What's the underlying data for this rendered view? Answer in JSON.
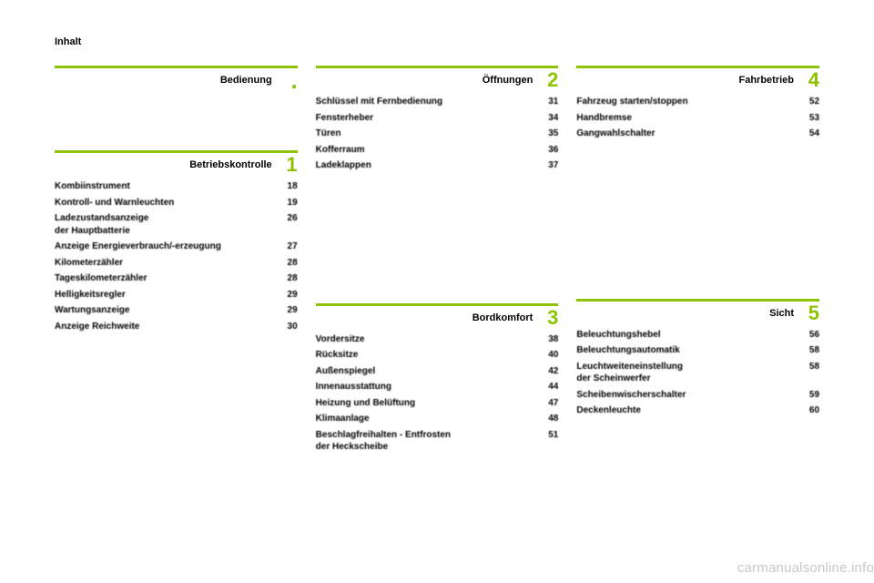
{
  "header": "Inhalt",
  "footer": "carmanualsonline.info",
  "col1": {
    "section_a": {
      "title": "Bedienung",
      "num": ".",
      "numColor": "#8ec301",
      "barColor": "#8ec301",
      "items": []
    },
    "section_b": {
      "title": "Betriebskontrolle",
      "num": "1",
      "numColor": "#8ec301",
      "barColor": "#8ec301",
      "items": [
        {
          "label": "Kombiinstrument",
          "page": "18"
        },
        {
          "label": "Kontroll- und Warnleuchten",
          "page": "19"
        },
        {
          "label": "Ladezustandsanzeige\nder Hauptbatterie",
          "page": "26"
        },
        {
          "label": "Anzeige Energieverbrauch/-erzeugung",
          "page": "27"
        },
        {
          "label": "Kilometerzähler",
          "page": "28"
        },
        {
          "label": "Tageskilometerzähler",
          "page": "28"
        },
        {
          "label": "Helligkeitsregler",
          "page": "29"
        },
        {
          "label": "Wartungsanzeige",
          "page": "29"
        },
        {
          "label": "Anzeige Reichweite",
          "page": "30"
        }
      ]
    }
  },
  "col2": {
    "section_a": {
      "title": "Öffnungen",
      "num": "2",
      "numColor": "#8ec301",
      "barColor": "#8ec301",
      "items": [
        {
          "label": "Schlüssel mit Fernbedienung",
          "page": "31"
        },
        {
          "label": "Fensterheber",
          "page": "34"
        },
        {
          "label": "Türen",
          "page": "35"
        },
        {
          "label": "Kofferraum",
          "page": "36"
        },
        {
          "label": "Ladeklappen",
          "page": "37"
        }
      ]
    },
    "section_b": {
      "title": "Bordkomfort",
      "num": "3",
      "numColor": "#8ec301",
      "barColor": "#8ec301",
      "items": [
        {
          "label": "Vordersitze",
          "page": "38"
        },
        {
          "label": "Rücksitze",
          "page": "40"
        },
        {
          "label": "Außenspiegel",
          "page": "42"
        },
        {
          "label": "Innenausstattung",
          "page": "44"
        },
        {
          "label": "Heizung und Belüftung",
          "page": "47"
        },
        {
          "label": "Klimaanlage",
          "page": "48"
        },
        {
          "label": "Beschlagfreihalten - Entfrosten\nder Heckscheibe",
          "page": "51"
        }
      ]
    }
  },
  "col3": {
    "section_a": {
      "title": "Fahrbetrieb",
      "num": "4",
      "numColor": "#8ec301",
      "barColor": "#8ec301",
      "items": [
        {
          "label": "Fahrzeug starten/stoppen",
          "page": "52"
        },
        {
          "label": "Handbremse",
          "page": "53"
        },
        {
          "label": "Gangwahlschalter",
          "page": "54"
        }
      ]
    },
    "section_b": {
      "title": "Sicht",
      "num": "5",
      "numColor": "#8ec301",
      "barColor": "#8ec301",
      "items": [
        {
          "label": "Beleuchtungshebel",
          "page": "56"
        },
        {
          "label": "Beleuchtungsautomatik",
          "page": "58"
        },
        {
          "label": "Leuchtweiteneinstellung\nder Scheinwerfer",
          "page": "58"
        },
        {
          "label": "Scheibenwischerschalter",
          "page": "59"
        },
        {
          "label": "Deckenleuchte",
          "page": "60"
        }
      ]
    }
  },
  "style": {
    "accent": "#8ec301",
    "text": "#000000",
    "background": "#ffffff"
  }
}
